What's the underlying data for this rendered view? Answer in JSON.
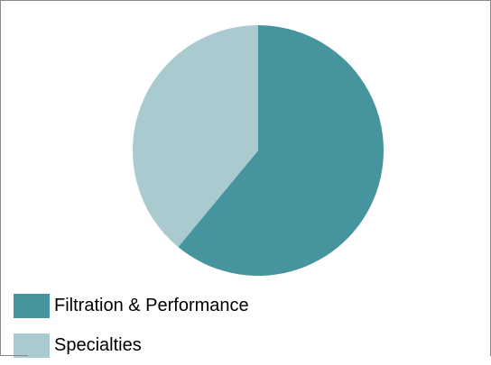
{
  "chart_data": {
    "type": "pie",
    "title": "",
    "legend_position": "bottom-left",
    "categories": [
      "Filtration & Performance",
      "Specialties"
    ],
    "values": [
      61,
      39
    ],
    "colors": [
      "#46959E",
      "#A9CACE"
    ],
    "start_angle_deg": 0,
    "direction": "clockwise"
  }
}
